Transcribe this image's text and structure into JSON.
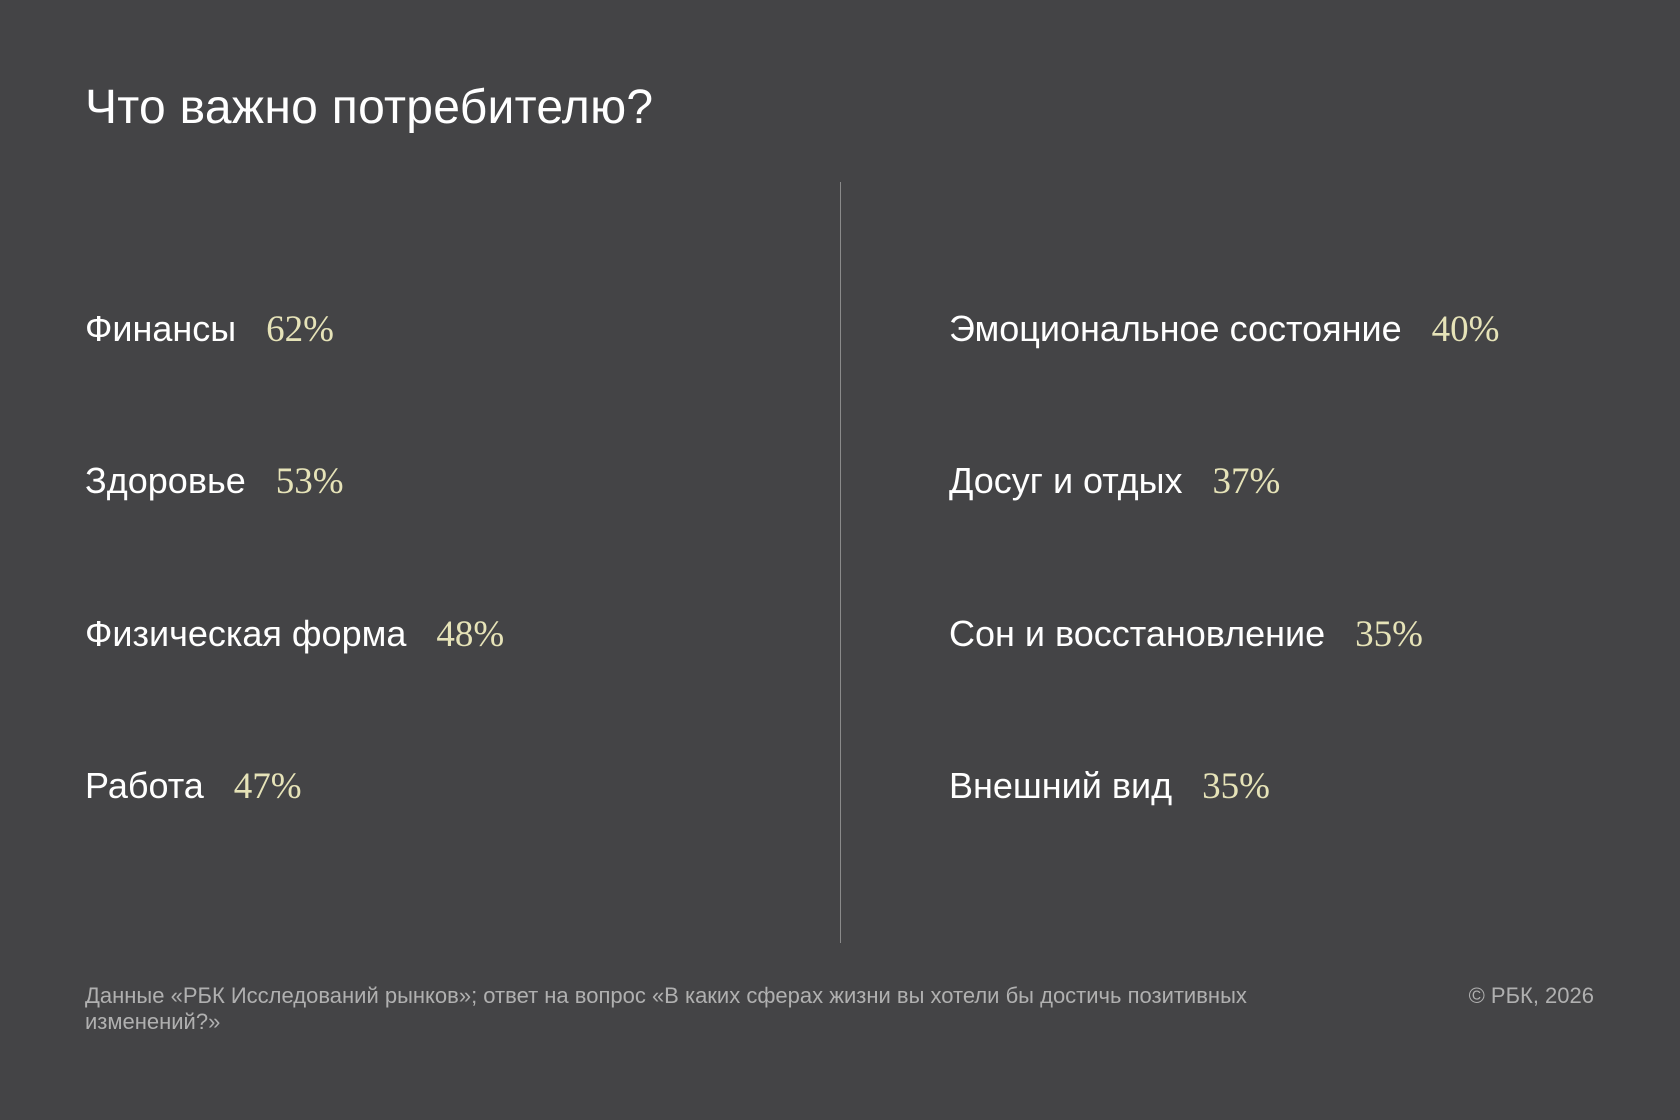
{
  "title": "Что важно потребителю?",
  "columns": [
    {
      "items": [
        {
          "label": "Финансы",
          "value": "62%"
        },
        {
          "label": "Здоровье",
          "value": "53%"
        },
        {
          "label": "Физическая форма",
          "value": "48%"
        },
        {
          "label": "Работа",
          "value": "47%"
        }
      ]
    },
    {
      "items": [
        {
          "label": "Эмоциональное состояние",
          "value": "40%"
        },
        {
          "label": "Досуг и отдых",
          "value": "37%"
        },
        {
          "label": "Сон и восстановление",
          "value": "35%"
        },
        {
          "label": "Внешний вид",
          "value": "35%"
        }
      ]
    }
  ],
  "footer": {
    "source": "Данные «РБК Исследований рынков»; ответ на вопрос  «В каких сферах жизни вы хотели бы достичь позитивных изменений?»",
    "copyright": "© РБК, 2026"
  }
}
